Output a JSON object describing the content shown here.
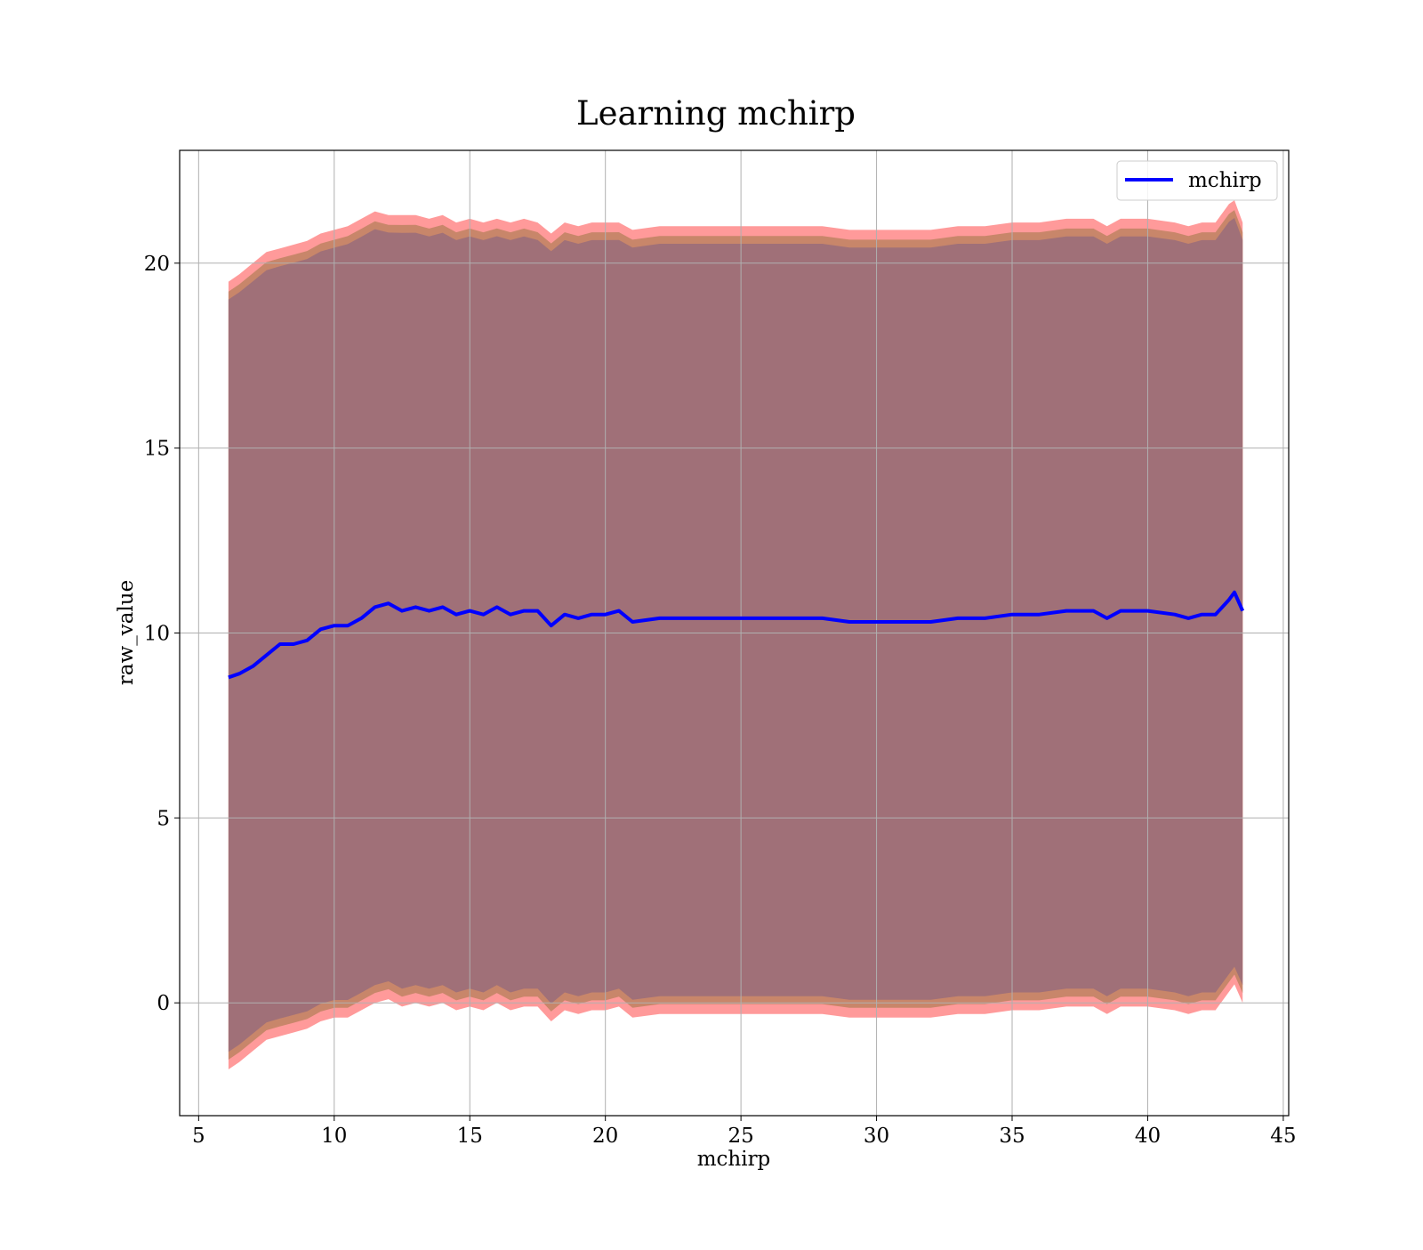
{
  "chart_data": {
    "type": "area",
    "title": "Learning mchirp",
    "xlabel": "mchirp",
    "ylabel": "raw_value",
    "xlim": [
      4.3,
      45.2
    ],
    "ylim": [
      -3.05,
      23.05
    ],
    "x_ticks": [
      5,
      10,
      15,
      20,
      25,
      30,
      35,
      40,
      45
    ],
    "y_ticks": [
      0,
      5,
      10,
      15,
      20
    ],
    "grid": true,
    "legend": {
      "placement": "top-right",
      "entries": [
        "mchirp"
      ]
    },
    "colors": {
      "line": "#0000ff",
      "outer_band": "#ff9a9a",
      "middle_band": "#c8866a",
      "inner_band": "#a07078",
      "grid": "#b0b0b0"
    },
    "series": [
      {
        "name": "mchirp",
        "x": [
          6.1,
          6.5,
          7.0,
          7.5,
          8.0,
          8.5,
          9.0,
          9.5,
          10.0,
          10.5,
          11.0,
          11.5,
          12.0,
          12.5,
          13.0,
          13.5,
          14.0,
          14.5,
          15.0,
          15.5,
          16.0,
          16.5,
          17.0,
          17.5,
          18.0,
          18.5,
          19.0,
          19.5,
          20.0,
          20.5,
          21.0,
          22.0,
          23.0,
          24.0,
          25.0,
          26.0,
          27.0,
          28.0,
          29.0,
          30.0,
          31.0,
          32.0,
          33.0,
          34.0,
          35.0,
          36.0,
          37.0,
          37.5,
          38.0,
          38.5,
          39.0,
          40.0,
          41.0,
          41.5,
          42.0,
          42.5,
          43.0,
          43.2,
          43.5
        ],
        "y": [
          8.8,
          8.9,
          9.1,
          9.4,
          9.7,
          9.7,
          9.8,
          10.1,
          10.2,
          10.2,
          10.4,
          10.7,
          10.8,
          10.6,
          10.7,
          10.6,
          10.7,
          10.5,
          10.6,
          10.5,
          10.7,
          10.5,
          10.6,
          10.6,
          10.2,
          10.5,
          10.4,
          10.5,
          10.5,
          10.6,
          10.3,
          10.4,
          10.4,
          10.4,
          10.4,
          10.4,
          10.4,
          10.4,
          10.3,
          10.3,
          10.3,
          10.3,
          10.4,
          10.4,
          10.5,
          10.5,
          10.6,
          10.6,
          10.6,
          10.4,
          10.6,
          10.6,
          10.5,
          10.4,
          10.5,
          10.5,
          10.9,
          11.1,
          10.6
        ],
        "band_upper_outer": [
          19.5,
          19.7,
          20.0,
          20.3,
          20.4,
          20.5,
          20.6,
          20.8,
          20.9,
          21.0,
          21.2,
          21.4,
          21.3,
          21.3,
          21.3,
          21.2,
          21.3,
          21.1,
          21.2,
          21.1,
          21.2,
          21.1,
          21.2,
          21.1,
          20.8,
          21.1,
          21.0,
          21.1,
          21.1,
          21.1,
          20.9,
          21.0,
          21.0,
          21.0,
          21.0,
          21.0,
          21.0,
          21.0,
          20.9,
          20.9,
          20.9,
          20.9,
          21.0,
          21.0,
          21.1,
          21.1,
          21.2,
          21.2,
          21.2,
          21.0,
          21.2,
          21.2,
          21.1,
          21.0,
          21.1,
          21.1,
          21.6,
          21.7,
          21.1
        ],
        "band_lower_outer": [
          -1.8,
          -1.6,
          -1.3,
          -1.0,
          -0.9,
          -0.8,
          -0.7,
          -0.5,
          -0.4,
          -0.4,
          -0.2,
          0.0,
          0.1,
          -0.1,
          0.0,
          -0.1,
          0.0,
          -0.2,
          -0.1,
          -0.2,
          0.0,
          -0.2,
          -0.1,
          -0.1,
          -0.5,
          -0.2,
          -0.3,
          -0.2,
          -0.2,
          -0.1,
          -0.4,
          -0.3,
          -0.3,
          -0.3,
          -0.3,
          -0.3,
          -0.3,
          -0.3,
          -0.4,
          -0.4,
          -0.4,
          -0.4,
          -0.3,
          -0.3,
          -0.2,
          -0.2,
          -0.1,
          -0.1,
          -0.1,
          -0.3,
          -0.1,
          -0.1,
          -0.2,
          -0.3,
          -0.2,
          -0.2,
          0.3,
          0.5,
          0.0
        ]
      }
    ]
  }
}
